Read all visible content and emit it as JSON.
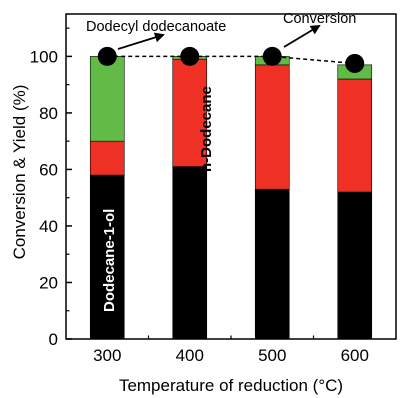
{
  "chart_data": {
    "type": "bar",
    "stacked": true,
    "categories": [
      "300",
      "400",
      "500",
      "600"
    ],
    "series": [
      {
        "name": "Dodecane-1-ol",
        "color": "#000000",
        "values": [
          58,
          61,
          53,
          52
        ]
      },
      {
        "name": "n-Dodecane",
        "color": "#ee3124",
        "values": [
          12,
          38,
          44,
          40
        ]
      },
      {
        "name": "Dodecyl dodecanoate",
        "color": "#62bb46",
        "values": [
          30,
          1,
          3,
          5
        ]
      }
    ],
    "conversion": {
      "name": "Conversion",
      "values": [
        100,
        100,
        100,
        97.5
      ],
      "style": "dashed-line-with-circles"
    },
    "xlabel": "Temperature of reduction (°C)",
    "ylabel": "Conversion & Yield (%)",
    "ylim": [
      0,
      115
    ],
    "yticks": [
      "0",
      "20",
      "40",
      "60",
      "80",
      "100"
    ],
    "annotations": {
      "ester": "Dodecyl dodecanoate",
      "conversion": "Conversion",
      "alcohol": "Dodecane-1-ol",
      "alkane": "n-Dodecane"
    },
    "grid": false,
    "legend": "none"
  }
}
